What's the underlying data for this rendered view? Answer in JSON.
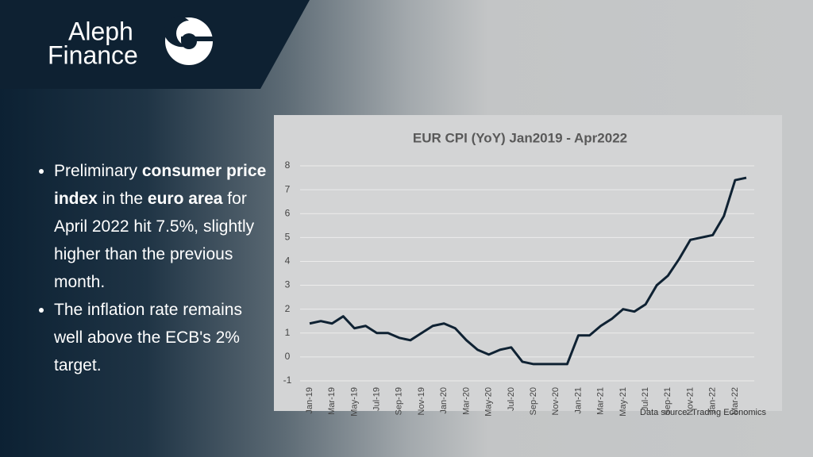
{
  "brand": {
    "line1": "Aleph",
    "line2": "Finance"
  },
  "bullets": [
    [
      {
        "text": "Preliminary ",
        "bold": false
      },
      {
        "text": "consumer price index",
        "bold": true
      },
      {
        "text": " in the ",
        "bold": false
      },
      {
        "text": "euro area",
        "bold": true
      },
      {
        "text": " for April 2022 hit 7.5%, slightly higher than the previous month.",
        "bold": false
      }
    ],
    [
      {
        "text": "The inflation rate remains well above the ECB's 2% target.",
        "bold": false
      }
    ]
  ],
  "chart_data": {
    "type": "line",
    "title": "EUR CPI (YoY) Jan2019 - Apr2022",
    "categories": [
      "Jan-19",
      null,
      "Mar-19",
      null,
      "May-19",
      null,
      "Jul-19",
      null,
      "Sep-19",
      null,
      "Nov-19",
      null,
      "Jan-20",
      null,
      "Mar-20",
      null,
      "May-20",
      null,
      "Jul-20",
      null,
      "Sep-20",
      null,
      "Nov-20",
      null,
      "Jan-21",
      null,
      "Mar-21",
      null,
      "May-21",
      null,
      "Jul-21",
      null,
      "Sep-21",
      null,
      "Nov-21",
      null,
      "Jan-22",
      null,
      "Mar-22",
      null
    ],
    "values": [
      1.4,
      1.5,
      1.4,
      1.7,
      1.2,
      1.3,
      1.0,
      1.0,
      0.8,
      0.7,
      1.0,
      1.3,
      1.4,
      1.2,
      0.7,
      0.3,
      0.1,
      0.3,
      0.4,
      -0.2,
      -0.3,
      -0.3,
      -0.3,
      -0.3,
      0.9,
      0.9,
      1.3,
      1.6,
      2.0,
      1.9,
      2.2,
      3.0,
      3.4,
      4.1,
      4.9,
      5.0,
      5.1,
      5.9,
      7.4,
      7.5
    ],
    "color": "#0f2233",
    "ylim": [
      -1,
      8
    ],
    "yticks": [
      -1,
      0,
      1,
      2,
      3,
      4,
      5,
      6,
      7,
      8
    ],
    "grid": true,
    "source": "Data source: Trading Economics"
  }
}
